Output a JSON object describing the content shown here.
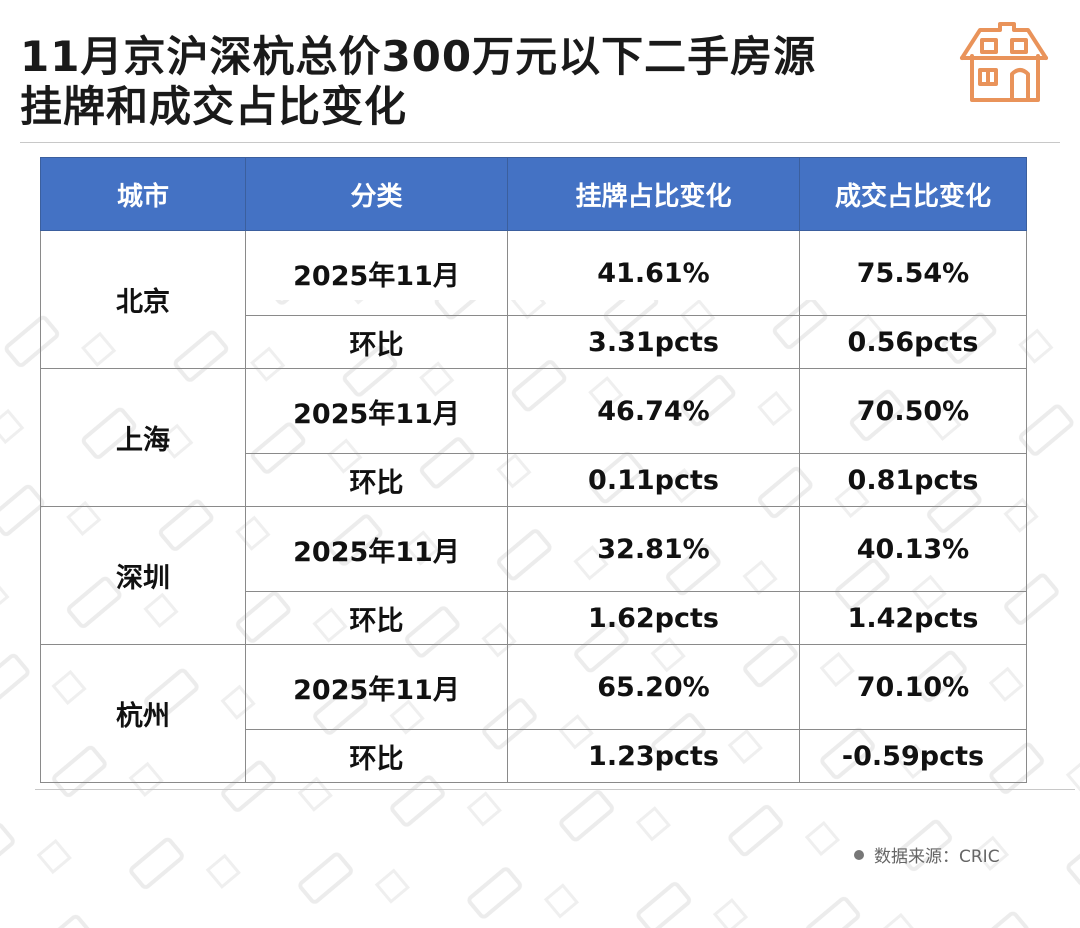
{
  "title": {
    "line1": "11月京沪深杭总价300万元以下二手房源",
    "line2": "挂牌和成交占比变化"
  },
  "table": {
    "headers": [
      "城市",
      "分类",
      "挂牌占比变化",
      "成交占比变化"
    ],
    "rows": [
      {
        "city": "北京",
        "month_label": "2025年11月",
        "listing": "41.61%",
        "deal": "75.54%",
        "mom_label": "环比",
        "listing_mom": "3.31pcts",
        "deal_mom": "0.56pcts"
      },
      {
        "city": "上海",
        "month_label": "2025年11月",
        "listing": "46.74%",
        "deal": "70.50%",
        "mom_label": "环比",
        "listing_mom": "0.11pcts",
        "deal_mom": "0.81pcts"
      },
      {
        "city": "深圳",
        "month_label": "2025年11月",
        "listing": "32.81%",
        "deal": "40.13%",
        "mom_label": "环比",
        "listing_mom": "1.62pcts",
        "deal_mom": "1.42pcts"
      },
      {
        "city": "杭州",
        "month_label": "2025年11月",
        "listing": "65.20%",
        "deal": "70.10%",
        "mom_label": "环比",
        "listing_mom": "1.23pcts",
        "deal_mom": "-0.59pcts"
      }
    ]
  },
  "source": "数据来源：CRIC",
  "colors": {
    "header_bg": "#4472c4",
    "positive": "#e01818",
    "negative": "#16a34a",
    "logo": "#e9935a"
  },
  "icons": {
    "logo": "house-icon"
  }
}
